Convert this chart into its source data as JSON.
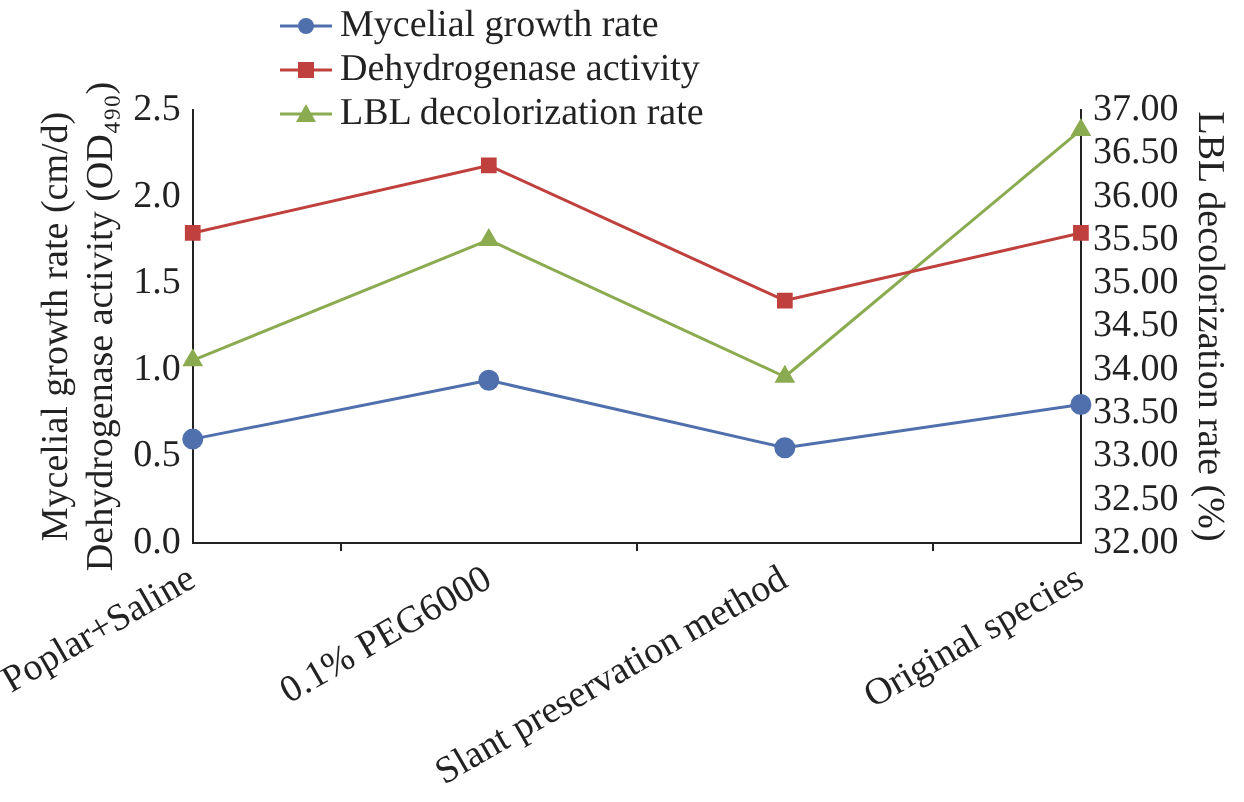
{
  "chart_data": {
    "type": "line",
    "categories": [
      "Poplar+Saline",
      "0.1% PEG6000",
      "Slant preservation method",
      "Original species"
    ],
    "ylabel": "Mycelial growth rate (cm/d)\nDehydrogenase activity (OD₄₉₀)",
    "y2label": "LBL decolorization rate (%)",
    "ylim": [
      0,
      2.5
    ],
    "yticks": [
      {
        "value": 0,
        "label": "0.0"
      },
      {
        "value": 0.5,
        "label": "0.5"
      },
      {
        "value": 1,
        "label": "1.0"
      },
      {
        "value": 1.5,
        "label": "1.5"
      },
      {
        "value": 2,
        "label": "2.0"
      },
      {
        "value": 2.5,
        "label": "2.5"
      }
    ],
    "y2lim": [
      32,
      37
    ],
    "y2ticks": [
      {
        "value": 32,
        "label": "32.00"
      },
      {
        "value": 32.5,
        "label": "32.50"
      },
      {
        "value": 33,
        "label": "33.00"
      },
      {
        "value": 33.5,
        "label": "33.50"
      },
      {
        "value": 34,
        "label": "34.00"
      },
      {
        "value": 34.5,
        "label": "34.50"
      },
      {
        "value": 35,
        "label": "35.00"
      },
      {
        "value": 35.5,
        "label": "35.50"
      },
      {
        "value": 36,
        "label": "36.00"
      },
      {
        "value": 36.5,
        "label": "36.50"
      },
      {
        "value": 37,
        "label": "37.00"
      }
    ],
    "series": [
      {
        "name": "Mycelial growth rate",
        "color": "#4f6fad",
        "marker": "circle",
        "values": [
          0.6,
          0.94,
          0.55,
          0.8
        ]
      },
      {
        "name": "Dehydrogenase activity",
        "color": "#c0403e",
        "marker": "square",
        "values": [
          1.79,
          2.18,
          1.4,
          1.79
        ]
      },
      {
        "name": "LBL decolorization rate",
        "color": "#8aab4f",
        "marker": "triangle",
        "axis": "y2",
        "values": [
          34.11,
          35.5,
          33.92,
          36.77
        ]
      }
    ],
    "legend": "top",
    "grid": false
  }
}
